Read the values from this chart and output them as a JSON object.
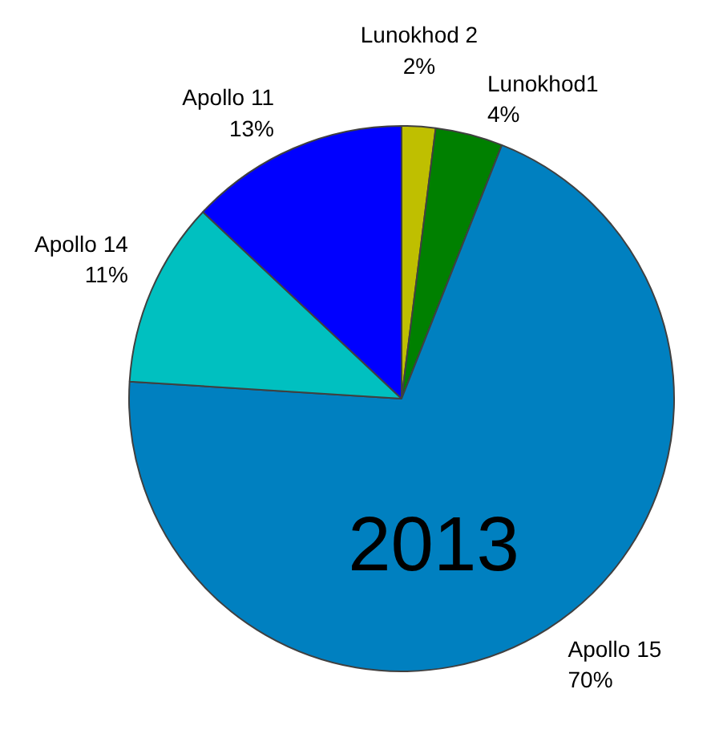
{
  "chart_data": {
    "type": "pie",
    "title": "2013",
    "categories": [
      "Lunokhod 2",
      "Lunokhod1",
      "Apollo 15",
      "Apollo 14",
      "Apollo 11"
    ],
    "values": [
      2,
      4,
      70,
      11,
      13
    ],
    "value_labels": [
      "2%",
      "4%",
      "70%",
      "11%",
      "13%"
    ],
    "colors": [
      "#bfbf00",
      "#008000",
      "#0080c0",
      "#00c0c0",
      "#0000ff"
    ]
  }
}
